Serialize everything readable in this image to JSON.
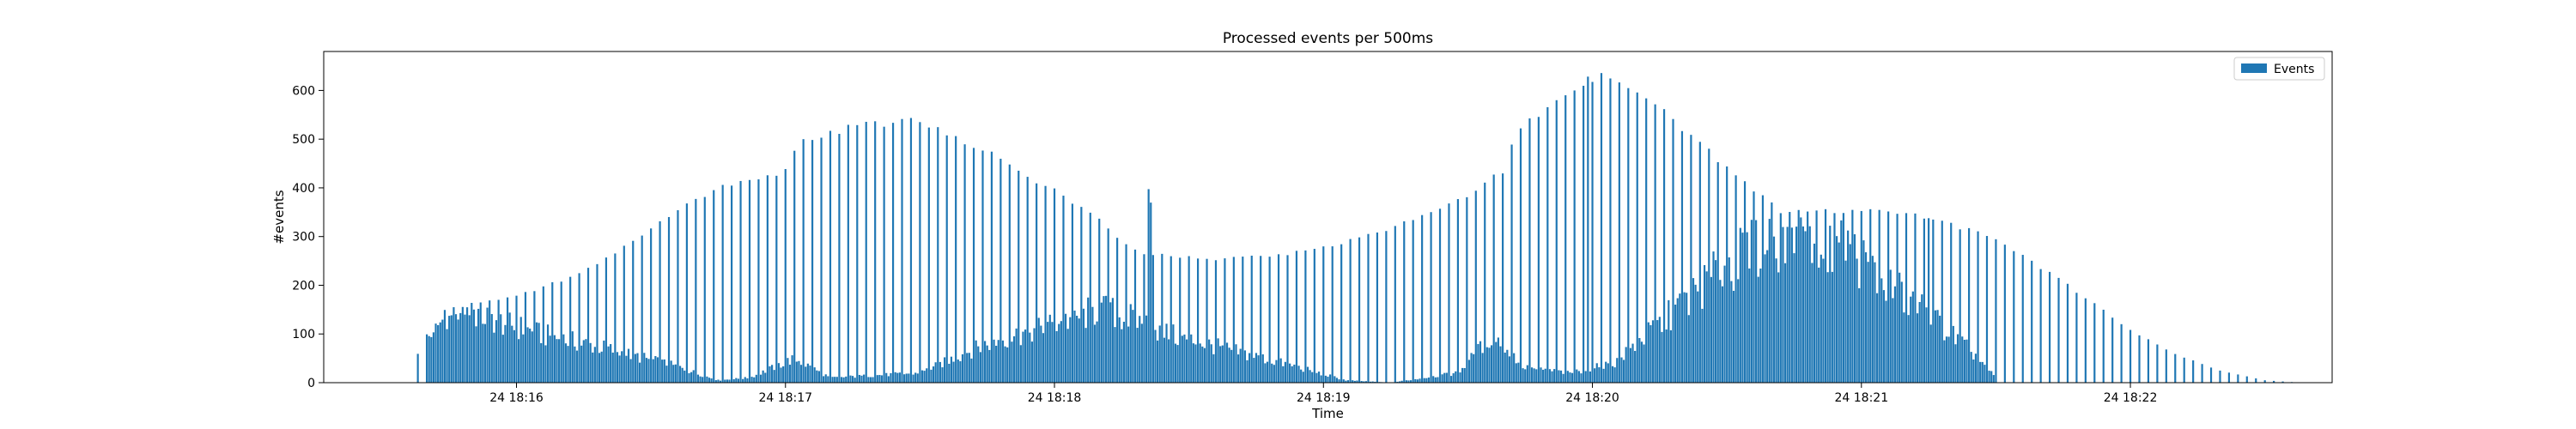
{
  "chart_data": {
    "type": "bar",
    "title": "Processed events per 500ms",
    "xlabel": "Time",
    "ylabel": "#events",
    "ylim": [
      0,
      680
    ],
    "yticks": [
      0,
      100,
      200,
      300,
      400,
      500,
      600
    ],
    "xlim": [
      "18:15:17",
      "18:22:45"
    ],
    "xticks": [
      {
        "t": "18:16:00",
        "label": "24 18:16"
      },
      {
        "t": "18:17:00",
        "label": "24 18:17"
      },
      {
        "t": "18:18:00",
        "label": "24 18:18"
      },
      {
        "t": "18:19:00",
        "label": "24 18:19"
      },
      {
        "t": "18:20:00",
        "label": "24 18:20"
      },
      {
        "t": "18:21:00",
        "label": "24 18:21"
      },
      {
        "t": "18:22:00",
        "label": "24 18:22"
      }
    ],
    "bin_seconds": 0.5,
    "legend": {
      "position": "top-right",
      "entries": [
        "Events"
      ]
    },
    "series": [
      {
        "name": "Events",
        "color": "#1f77b4",
        "envelope": [
          {
            "t": "18:15:37",
            "v": 40
          },
          {
            "t": "18:15:40",
            "v": 100
          },
          {
            "t": "18:15:44",
            "v": 150
          },
          {
            "t": "18:15:50",
            "v": 165
          },
          {
            "t": "18:16:00",
            "v": 180
          },
          {
            "t": "18:16:15",
            "v": 230
          },
          {
            "t": "18:16:30",
            "v": 320
          },
          {
            "t": "18:16:45",
            "v": 410
          },
          {
            "t": "18:17:00",
            "v": 440
          },
          {
            "t": "18:17:03",
            "v": 500
          },
          {
            "t": "18:17:15",
            "v": 535
          },
          {
            "t": "18:17:30",
            "v": 545
          },
          {
            "t": "18:17:45",
            "v": 480
          },
          {
            "t": "18:18:00",
            "v": 400
          },
          {
            "t": "18:18:10",
            "v": 340
          },
          {
            "t": "18:18:15",
            "v": 290
          },
          {
            "t": "18:18:20",
            "v": 270
          },
          {
            "t": "18:18:35",
            "v": 255
          },
          {
            "t": "18:18:50",
            "v": 265
          },
          {
            "t": "18:19:00",
            "v": 280
          },
          {
            "t": "18:19:15",
            "v": 320
          },
          {
            "t": "18:19:30",
            "v": 380
          },
          {
            "t": "18:19:40",
            "v": 440
          },
          {
            "t": "18:19:43",
            "v": 530
          },
          {
            "t": "18:19:55",
            "v": 600
          },
          {
            "t": "18:20:05",
            "v": 640
          },
          {
            "t": "18:20:15",
            "v": 570
          },
          {
            "t": "18:20:30",
            "v": 450
          },
          {
            "t": "18:20:42",
            "v": 355
          },
          {
            "t": "18:21:00",
            "v": 360
          },
          {
            "t": "18:21:15",
            "v": 345
          },
          {
            "t": "18:21:30",
            "v": 300
          },
          {
            "t": "18:21:45",
            "v": 210
          },
          {
            "t": "18:22:00",
            "v": 110
          },
          {
            "t": "18:22:10",
            "v": 60
          },
          {
            "t": "18:22:20",
            "v": 25
          },
          {
            "t": "18:22:30",
            "v": 5
          },
          {
            "t": "18:22:38",
            "v": 0
          }
        ],
        "spikes": [
          {
            "t": "18:18:21",
            "v": 400
          },
          {
            "t": "18:18:21.5",
            "v": 370
          },
          {
            "t": "18:19:59",
            "v": 640
          },
          {
            "t": "18:20:02",
            "v": 650
          },
          {
            "t": "18:21:15",
            "v": 340
          }
        ],
        "secondary": [
          {
            "t": "18:15:40",
            "v": 90
          },
          {
            "t": "18:15:46",
            "v": 160
          },
          {
            "t": "18:15:55",
            "v": 130
          },
          {
            "t": "18:16:05",
            "v": 100
          },
          {
            "t": "18:16:20",
            "v": 70
          },
          {
            "t": "18:16:35",
            "v": 35
          },
          {
            "t": "18:16:45",
            "v": 5
          },
          {
            "t": "18:16:52",
            "v": 10
          },
          {
            "t": "18:17:02",
            "v": 50
          },
          {
            "t": "18:17:10",
            "v": 10
          },
          {
            "t": "18:17:30",
            "v": 20
          },
          {
            "t": "18:17:45",
            "v": 80
          },
          {
            "t": "18:18:00",
            "v": 120
          },
          {
            "t": "18:18:10",
            "v": 150
          },
          {
            "t": "18:18:18",
            "v": 130
          },
          {
            "t": "18:18:25",
            "v": 100
          },
          {
            "t": "18:18:40",
            "v": 65
          },
          {
            "t": "18:18:55",
            "v": 30
          },
          {
            "t": "18:19:05",
            "v": 5
          },
          {
            "t": "18:19:15",
            "v": 0
          },
          {
            "t": "18:19:30",
            "v": 20
          },
          {
            "t": "18:19:38",
            "v": 100
          },
          {
            "t": "18:19:45",
            "v": 30
          },
          {
            "t": "18:19:55",
            "v": 20
          },
          {
            "t": "18:20:05",
            "v": 40
          },
          {
            "t": "18:20:15",
            "v": 120
          },
          {
            "t": "18:20:30",
            "v": 240
          },
          {
            "t": "18:20:45",
            "v": 320
          },
          {
            "t": "18:20:55",
            "v": 290
          },
          {
            "t": "18:21:05",
            "v": 210
          },
          {
            "t": "18:21:15",
            "v": 140
          },
          {
            "t": "18:21:25",
            "v": 60
          },
          {
            "t": "18:21:30",
            "v": 10
          }
        ]
      }
    ]
  }
}
